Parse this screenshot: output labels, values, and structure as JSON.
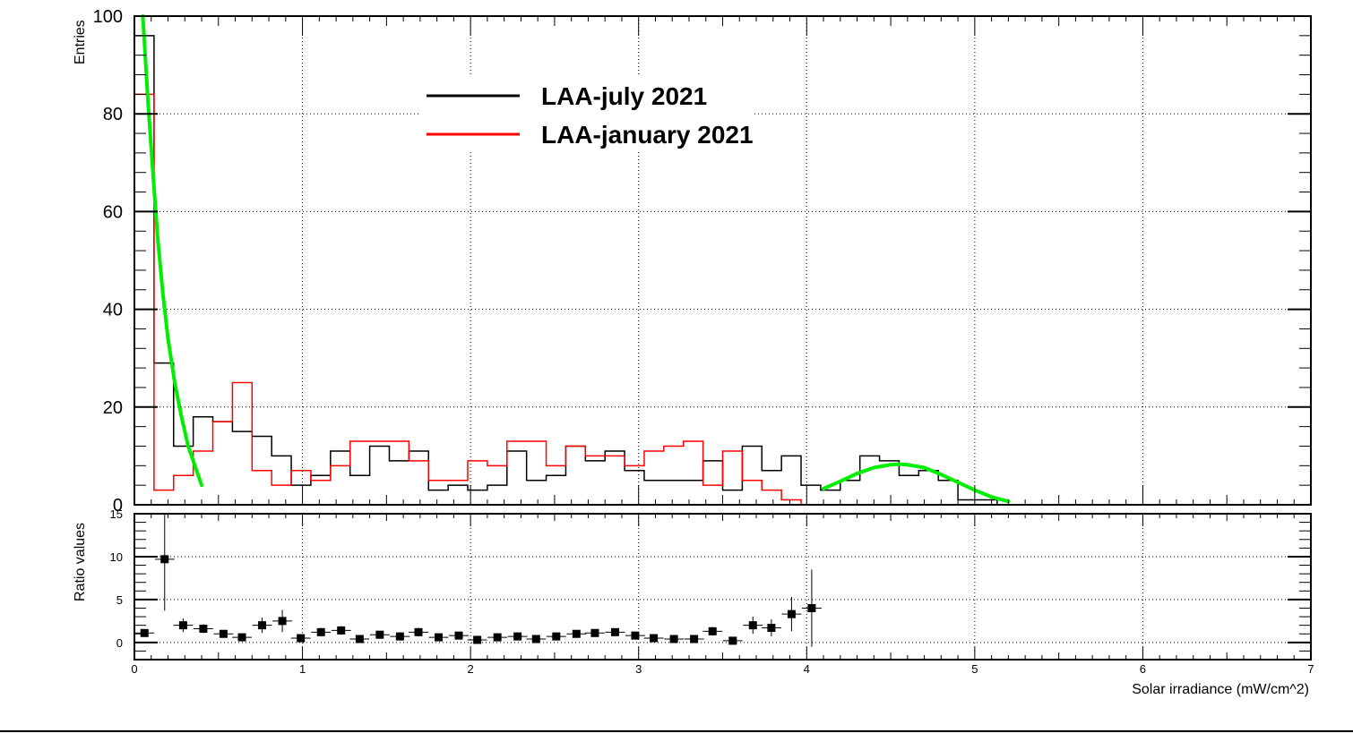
{
  "chart_data": [
    {
      "type": "histogram",
      "panel": "top",
      "ylabel": "Entries",
      "xlim": [
        0,
        7
      ],
      "ylim": [
        0,
        100
      ],
      "y_ticks": [
        0,
        20,
        40,
        60,
        80,
        100
      ],
      "grid": true,
      "legend_position": "top-center",
      "bin_edges": [
        0,
        0.1167,
        0.2333,
        0.35,
        0.4667,
        0.5833,
        0.7,
        0.8167,
        0.9333,
        1.05,
        1.1667,
        1.2833,
        1.4,
        1.5167,
        1.6333,
        1.75,
        1.8667,
        1.9833,
        2.1,
        2.2167,
        2.3333,
        2.45,
        2.5667,
        2.6833,
        2.8,
        2.9167,
        3.0333,
        3.15,
        3.2667,
        3.3833,
        3.5,
        3.6167,
        3.7333,
        3.85,
        3.9667,
        4.0833,
        4.2,
        4.3167,
        4.4333,
        4.55,
        4.6667,
        4.7833,
        4.9,
        5.0167,
        5.1333,
        5.25,
        5.3667,
        5.4833,
        5.6,
        5.7167,
        5.8333,
        5.95,
        6.0667,
        6.1833,
        6.3,
        6.4167,
        6.5333,
        6.65,
        6.7667,
        6.8833,
        7.0
      ],
      "series": [
        {
          "name": "LAA-july 2021",
          "color": "#000000",
          "values": [
            96,
            29,
            12,
            18,
            17,
            15,
            14,
            10,
            4,
            6,
            11,
            6,
            12,
            9,
            11,
            3,
            4,
            3,
            4,
            11,
            5,
            6,
            12,
            9,
            11,
            7,
            5,
            5,
            5,
            9,
            3,
            12,
            7,
            10,
            4,
            3,
            5,
            10,
            9,
            6,
            7,
            5,
            1,
            1,
            0,
            0,
            0,
            0,
            0,
            0,
            0,
            0,
            0,
            0,
            0,
            0,
            0,
            0,
            0,
            0
          ]
        },
        {
          "name": "LAA-january 2021",
          "color": "#ff0000",
          "values": [
            84,
            3,
            6,
            11,
            17,
            25,
            7,
            4,
            7,
            5,
            8,
            13,
            13,
            13,
            9,
            5,
            5,
            9,
            8,
            13,
            13,
            8,
            12,
            10,
            10,
            8,
            11,
            12,
            13,
            4,
            11,
            5,
            3,
            1,
            0,
            0,
            0,
            0,
            0,
            0,
            0,
            0,
            0,
            0,
            0,
            0,
            0,
            0,
            0,
            0,
            0,
            0,
            0,
            0,
            0,
            0,
            0,
            0,
            0,
            0
          ]
        }
      ],
      "fits": [
        {
          "color": "#00ee00",
          "x": [
            0.05,
            0.08,
            0.11,
            0.14,
            0.17,
            0.2,
            0.24,
            0.28,
            0.32,
            0.36,
            0.4
          ],
          "y": [
            100,
            83,
            68,
            54,
            43,
            34,
            25,
            18,
            12,
            8,
            4
          ]
        },
        {
          "color": "#00ee00",
          "x": [
            4.1,
            4.2,
            4.3,
            4.4,
            4.5,
            4.55,
            4.6,
            4.7,
            4.8,
            4.9,
            5.0,
            5.1,
            5.2
          ],
          "y": [
            3.3,
            4.8,
            6.4,
            7.6,
            8.2,
            8.3,
            8.2,
            7.6,
            6.2,
            4.6,
            3.0,
            1.6,
            0.7
          ]
        }
      ]
    },
    {
      "type": "scatter",
      "panel": "bottom",
      "xlabel": "Solar irradiance (mW/cm^2)",
      "ylabel": "Ratio values",
      "xlim": [
        0,
        7
      ],
      "ylim": [
        -2,
        15
      ],
      "y_ticks": [
        0,
        5,
        10,
        15
      ],
      "x_ticks": [
        0,
        1,
        2,
        3,
        4,
        5,
        6,
        7
      ],
      "grid": true,
      "points": [
        {
          "x": 0.06,
          "y": 1.1,
          "err": 0.2
        },
        {
          "x": 0.18,
          "y": 9.7,
          "err": 6.0
        },
        {
          "x": 0.29,
          "y": 2.0,
          "err": 0.8
        },
        {
          "x": 0.41,
          "y": 1.6,
          "err": 0.5
        },
        {
          "x": 0.53,
          "y": 1.0,
          "err": 0.3
        },
        {
          "x": 0.64,
          "y": 0.6,
          "err": 0.2
        },
        {
          "x": 0.76,
          "y": 2.0,
          "err": 0.9
        },
        {
          "x": 0.88,
          "y": 2.5,
          "err": 1.3
        },
        {
          "x": 0.99,
          "y": 0.5,
          "err": 0.3
        },
        {
          "x": 1.11,
          "y": 1.2,
          "err": 0.5
        },
        {
          "x": 1.23,
          "y": 1.4,
          "err": 0.5
        },
        {
          "x": 1.34,
          "y": 0.4,
          "err": 0.2
        },
        {
          "x": 1.46,
          "y": 0.9,
          "err": 0.3
        },
        {
          "x": 1.58,
          "y": 0.7,
          "err": 0.3
        },
        {
          "x": 1.69,
          "y": 1.2,
          "err": 0.5
        },
        {
          "x": 1.81,
          "y": 0.6,
          "err": 0.3
        },
        {
          "x": 1.93,
          "y": 0.8,
          "err": 0.4
        },
        {
          "x": 2.04,
          "y": 0.3,
          "err": 0.2
        },
        {
          "x": 2.16,
          "y": 0.6,
          "err": 0.3
        },
        {
          "x": 2.28,
          "y": 0.7,
          "err": 0.3
        },
        {
          "x": 2.39,
          "y": 0.4,
          "err": 0.2
        },
        {
          "x": 2.51,
          "y": 0.7,
          "err": 0.3
        },
        {
          "x": 2.63,
          "y": 1.0,
          "err": 0.3
        },
        {
          "x": 2.74,
          "y": 1.1,
          "err": 0.4
        },
        {
          "x": 2.86,
          "y": 1.2,
          "err": 0.4
        },
        {
          "x": 2.98,
          "y": 0.8,
          "err": 0.3
        },
        {
          "x": 3.09,
          "y": 0.5,
          "err": 0.2
        },
        {
          "x": 3.21,
          "y": 0.4,
          "err": 0.2
        },
        {
          "x": 3.33,
          "y": 0.4,
          "err": 0.2
        },
        {
          "x": 3.44,
          "y": 1.3,
          "err": 0.5
        },
        {
          "x": 3.56,
          "y": 0.2,
          "err": 0.2
        },
        {
          "x": 3.68,
          "y": 2.0,
          "err": 1.0
        },
        {
          "x": 3.79,
          "y": 1.7,
          "err": 1.0
        },
        {
          "x": 3.91,
          "y": 3.3,
          "err": 2.0
        },
        {
          "x": 4.03,
          "y": 4.0,
          "err": 4.5
        }
      ]
    }
  ],
  "legend": {
    "items": [
      {
        "label": "LAA-july 2021",
        "color": "#000000"
      },
      {
        "label": "LAA-january 2021",
        "color": "#ff0000"
      }
    ]
  }
}
